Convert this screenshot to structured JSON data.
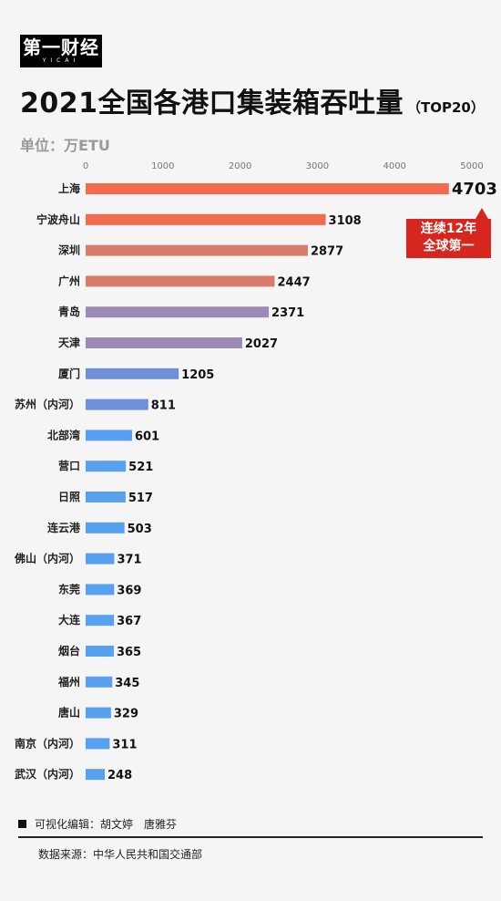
{
  "header": {
    "logo_text": "第一财经",
    "logo_sub": "YICAI",
    "title": "2021全国各港口集装箱吞吐量",
    "title_suffix": "（TOP20）",
    "unit": "单位：万ETU"
  },
  "badge": {
    "line1": "连续12年",
    "line2": "全球第一"
  },
  "footer": {
    "editor": "可视化编辑：胡文婷　唐雅芬",
    "source": "数据来源：中华人民共和国交通部"
  },
  "chart_data": {
    "type": "bar",
    "orientation": "horizontal",
    "categories": [
      "上海",
      "宁波舟山",
      "深圳",
      "广州",
      "青岛",
      "天津",
      "厦门",
      "苏州（内河）",
      "北部湾",
      "营口",
      "日照",
      "连云港",
      "佛山（内河）",
      "东莞",
      "大连",
      "烟台",
      "福州",
      "唐山",
      "南京（内河）",
      "武汉（内河）"
    ],
    "values": [
      4703,
      3108,
      2877,
      2447,
      2371,
      2027,
      1205,
      811,
      601,
      521,
      517,
      503,
      371,
      369,
      367,
      365,
      345,
      329,
      311,
      248
    ],
    "colors": [
      "#f26b4f",
      "#f26b4f",
      "#d97b6d",
      "#d97b6d",
      "#9d89b6",
      "#9d89b6",
      "#6f8fd8",
      "#6f8fd8",
      "#5aa0f0",
      "#5aa0f0",
      "#5aa0f0",
      "#5aa0f0",
      "#5aa0f0",
      "#5aa0f0",
      "#5aa0f0",
      "#5aa0f0",
      "#5aa0f0",
      "#5aa0f0",
      "#5aa0f0",
      "#5aa0f0"
    ],
    "xlim": [
      0,
      5000
    ],
    "xticks": [
      0,
      1000,
      2000,
      3000,
      4000,
      5000
    ],
    "grid": false,
    "legend": "none"
  }
}
